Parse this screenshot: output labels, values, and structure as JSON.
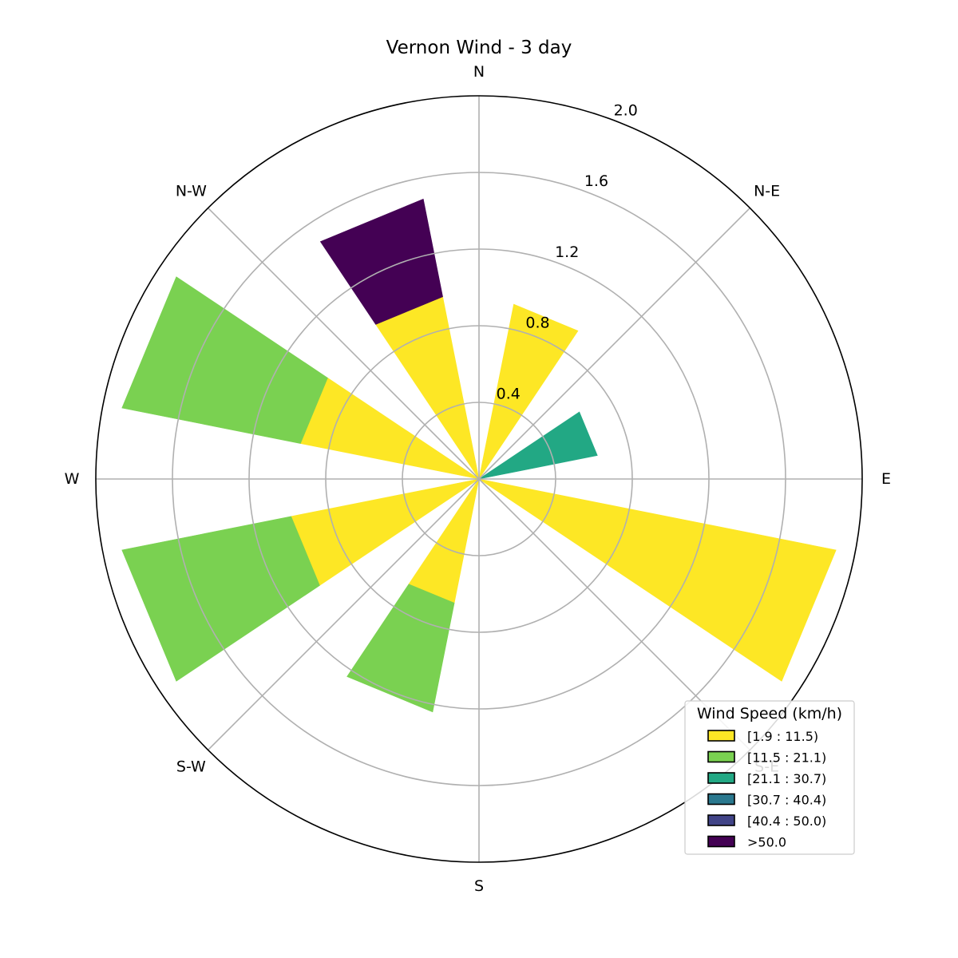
{
  "chart_data": {
    "type": "windrose",
    "title": "Vernon Wind - 3 day",
    "directions": [
      "N",
      "N-NE",
      "N-E",
      "E-NE",
      "E",
      "E-SE",
      "S-E",
      "S-SE",
      "S",
      "S-SW",
      "S-W",
      "W-SW",
      "W",
      "W-NW",
      "N-W",
      "N-NW"
    ],
    "direction_labels": [
      "N",
      "N-E",
      "E",
      "S-E",
      "S",
      "S-W",
      "W",
      "N-W"
    ],
    "radial_ticks": [
      0.4,
      0.8,
      1.2,
      1.6,
      2.0
    ],
    "radial_tick_labels": [
      "0.4",
      "0.8",
      "1.2",
      "1.6",
      "2.0"
    ],
    "rmax": 2.0,
    "grid": true,
    "legend": {
      "title": "Wind Speed (km/h)",
      "placement": "lower-right"
    },
    "series": [
      {
        "name": "[1.9 : 11.5)",
        "color": "#fde725",
        "values": [
          0,
          0.93,
          0,
          0,
          0,
          1.9,
          0,
          0,
          0,
          0.66,
          0,
          1.0,
          0,
          0.95,
          0,
          0.97
        ]
      },
      {
        "name": "[11.5 : 21.1)",
        "color": "#7ad151",
        "values": [
          0,
          0,
          0,
          0,
          0,
          0,
          0,
          0,
          0,
          0.58,
          0,
          0.9,
          0,
          0.95,
          0,
          0
        ]
      },
      {
        "name": "[21.1 : 30.7)",
        "color": "#22a884",
        "values": [
          0,
          0,
          0,
          0.63,
          0,
          0,
          0,
          0,
          0,
          0,
          0,
          0,
          0,
          0,
          0,
          0
        ]
      },
      {
        "name": "[30.7 : 40.4)",
        "color": "#2a788e",
        "values": [
          0,
          0,
          0,
          0,
          0,
          0,
          0,
          0,
          0,
          0,
          0,
          0,
          0,
          0,
          0,
          0
        ]
      },
      {
        "name": "[40.4 : 50.0)",
        "color": "#414487",
        "values": [
          0,
          0,
          0,
          0,
          0,
          0,
          0,
          0,
          0,
          0,
          0,
          0,
          0,
          0,
          0,
          0
        ]
      },
      {
        "name": ">50.0",
        "color": "#440154",
        "values": [
          0,
          0,
          0,
          0,
          0,
          0,
          0,
          0,
          0,
          0,
          0,
          0,
          0,
          0,
          0,
          0.52
        ]
      }
    ]
  }
}
